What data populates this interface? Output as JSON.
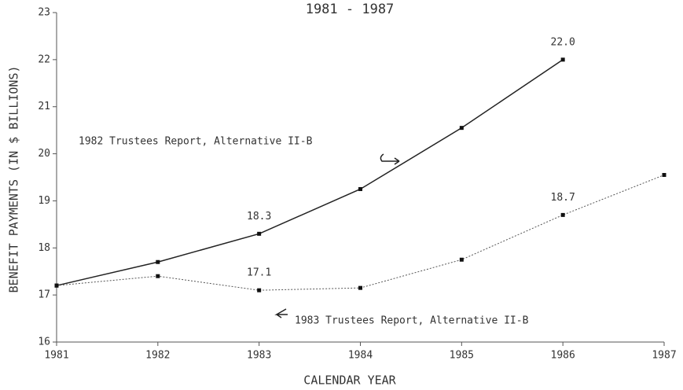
{
  "chart_data": {
    "type": "line",
    "title": "1981 - 1987",
    "xlabel": "CALENDAR YEAR",
    "ylabel": "BENEFIT PAYMENTS (IN $ BILLIONS)",
    "x": [
      1981,
      1982,
      1983,
      1984,
      1985,
      1986,
      1987
    ],
    "series": [
      {
        "name": "1982 Trustees Report, Alternative II-B",
        "color": "#222222",
        "dotted": false,
        "values": [
          17.2,
          17.7,
          18.3,
          19.25,
          20.55,
          22.0,
          null
        ],
        "value_labels": [
          null,
          null,
          "18.3",
          null,
          null,
          "22.0",
          null
        ]
      },
      {
        "name": "1983 Trustees Report, Alternative II-B",
        "color": "#555555",
        "dotted": true,
        "values": [
          17.2,
          17.4,
          17.1,
          17.15,
          17.75,
          18.7,
          19.55
        ],
        "value_labels": [
          null,
          null,
          "17.1",
          null,
          null,
          "18.7",
          null
        ]
      }
    ],
    "xlim": [
      1981,
      1987
    ],
    "xticks": [
      1981,
      1982,
      1983,
      1984,
      1985,
      1986,
      1987
    ],
    "ylim": [
      16,
      23
    ],
    "yticks": [
      16,
      17,
      18,
      19,
      20,
      21,
      22,
      23
    ],
    "grid": false
  }
}
